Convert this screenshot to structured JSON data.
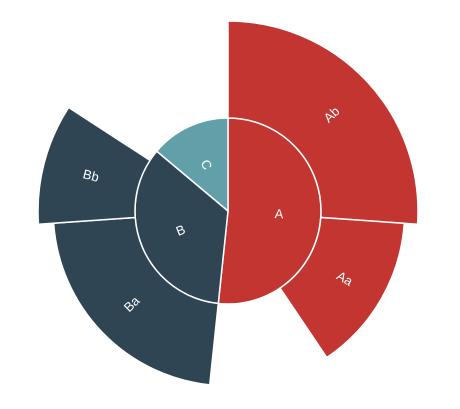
{
  "chart_data": {
    "type": "sunburst",
    "title": "",
    "inner": [
      {
        "label": "A",
        "start_deg": 0,
        "end_deg": 186,
        "color": "#c23531"
      },
      {
        "label": "B",
        "start_deg": 186,
        "end_deg": 310,
        "color": "#2f4554"
      },
      {
        "label": "C",
        "start_deg": 310,
        "end_deg": 360,
        "color": "#61a0a8"
      }
    ],
    "outer": [
      {
        "label": "Ab",
        "parent": "A",
        "start_deg": 0,
        "end_deg": 94,
        "radius_ratio": 1.0,
        "color": "#c23531"
      },
      {
        "label": "Aa",
        "parent": "A",
        "start_deg": 94,
        "end_deg": 146,
        "radius_ratio": 0.93,
        "color": "#c23531"
      },
      {
        "label": "Ba",
        "parent": "B",
        "start_deg": 186,
        "end_deg": 266,
        "radius_ratio": 0.92,
        "color": "#2f4554"
      },
      {
        "label": "Bb",
        "parent": "B",
        "start_deg": 266,
        "end_deg": 303,
        "radius_ratio": 1.0,
        "color": "#2f4554"
      }
    ]
  }
}
